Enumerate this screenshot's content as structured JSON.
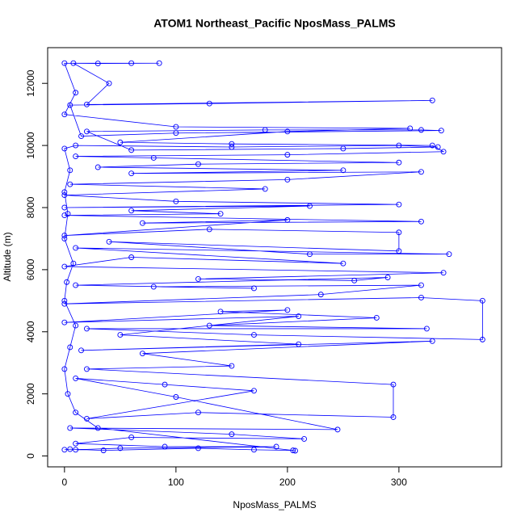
{
  "chart_data": {
    "type": "line",
    "title": "ATOM1 Northeast_Pacific NposMass_PALMS",
    "xlabel": "NposMass_PALMS",
    "ylabel": "Altitude (m)",
    "color": "#0000ff",
    "markers": true,
    "grid": false,
    "xlim": [
      -15.1,
      392.1
    ],
    "ylim": [
      -350,
      13150
    ],
    "xticks": [
      0,
      100,
      200,
      300
    ],
    "yticks": [
      0,
      2000,
      4000,
      6000,
      8000,
      10000,
      12000
    ],
    "x": [
      0,
      5,
      35,
      120,
      170,
      205,
      207,
      30,
      10,
      3,
      0,
      5,
      10,
      0,
      2,
      8,
      0,
      3,
      0,
      5,
      0,
      10,
      150,
      300,
      335,
      250,
      60,
      20,
      180,
      320,
      338,
      100,
      15,
      5,
      130,
      330,
      20,
      40,
      8,
      60,
      85,
      30,
      0,
      10,
      0,
      100,
      310,
      200,
      50,
      150,
      330,
      340,
      200,
      10,
      80,
      300,
      120,
      30,
      250,
      60,
      320,
      200,
      5,
      180,
      0,
      100,
      300,
      0,
      220,
      60,
      140,
      0,
      320,
      70,
      200,
      0,
      130,
      300,
      300,
      40,
      220,
      345,
      10,
      250,
      60,
      0,
      340,
      120,
      260,
      290,
      10,
      170,
      80,
      320,
      230,
      0,
      320,
      375,
      375,
      170,
      20,
      325,
      130,
      280,
      140,
      200,
      0,
      210,
      50,
      210,
      15,
      330,
      70,
      150,
      20,
      295,
      295,
      120,
      20,
      170,
      90,
      10,
      100,
      245,
      5,
      150,
      215,
      60,
      10,
      90,
      190,
      50,
      10
    ],
    "values": [
      200,
      220,
      180,
      250,
      200,
      180,
      170,
      900,
      1400,
      2000,
      2800,
      3500,
      4200,
      5000,
      5600,
      6200,
      7000,
      7800,
      8500,
      9200,
      9900,
      10000,
      9950,
      10000,
      9950,
      9900,
      9850,
      10450,
      10500,
      10500,
      10480,
      10400,
      10300,
      11300,
      11350,
      11450,
      11320,
      12000,
      12650,
      12650,
      12650,
      12640,
      12650,
      11700,
      11000,
      10600,
      10550,
      10450,
      10100,
      10050,
      10000,
      9800,
      9700,
      9650,
      9600,
      9450,
      9400,
      9300,
      9200,
      9100,
      9150,
      8900,
      8750,
      8600,
      8400,
      8200,
      8100,
      8000,
      8050,
      7900,
      7800,
      7750,
      7550,
      7500,
      7600,
      7100,
      7300,
      7200,
      6600,
      6900,
      6500,
      6500,
      6700,
      6200,
      6400,
      6100,
      5900,
      5700,
      5650,
      5750,
      5500,
      5400,
      5450,
      5500,
      5200,
      4900,
      5100,
      5000,
      3750,
      3900,
      4100,
      4100,
      4200,
      4450,
      4650,
      4700,
      4300,
      4500,
      3900,
      3600,
      3400,
      3700,
      3300,
      2900,
      2800,
      2300,
      1250,
      1400,
      1200,
      2100,
      2300,
      2500,
      1900,
      850,
      900,
      700,
      550,
      600,
      400,
      300,
      300,
      250,
      200
    ]
  }
}
